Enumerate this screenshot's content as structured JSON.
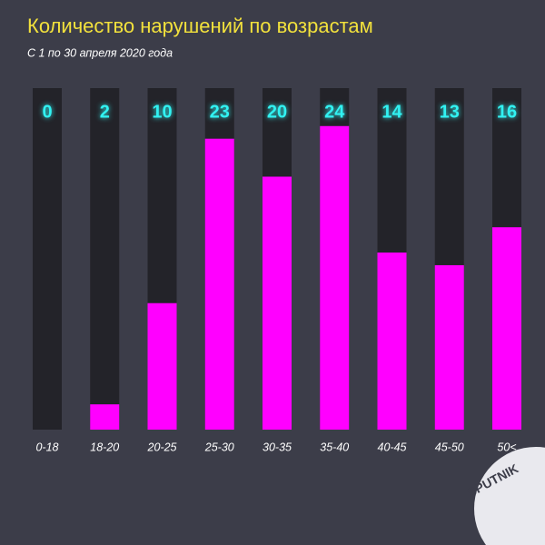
{
  "chart_data": {
    "type": "bar",
    "title": "Количество нарушений по возрастам",
    "subtitle": "С 1 по 30 апреля 2020 года",
    "categories": [
      "0-18",
      "18-20",
      "20-25",
      "25-30",
      "30-35",
      "35-40",
      "40-45",
      "45-50",
      "50<"
    ],
    "values": [
      0,
      2,
      10,
      23,
      20,
      24,
      14,
      13,
      16
    ],
    "color": "#ff00ff",
    "track_color": "#232329",
    "label_color": "#31f2f2",
    "ylim": [
      0,
      27
    ]
  },
  "logo": "SPUTNIK"
}
